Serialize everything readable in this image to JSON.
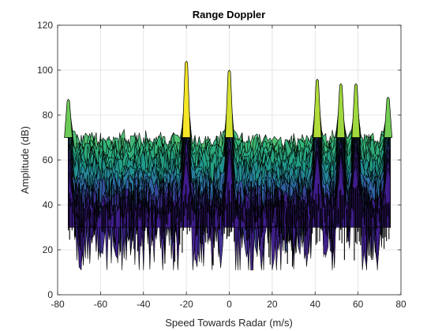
{
  "chart_data": {
    "type": "area",
    "title": "Range Doppler",
    "xlabel": "Speed Towards Radar (m/s)",
    "ylabel": "Amplitude (dB)",
    "xlim": [
      -80,
      80
    ],
    "ylim": [
      0,
      120
    ],
    "xticks": [
      -80,
      -60,
      -40,
      -20,
      0,
      20,
      40,
      60,
      80
    ],
    "yticks": [
      0,
      20,
      40,
      60,
      80,
      100,
      120
    ],
    "grid": true,
    "legend": "none",
    "colormap": [
      "#3e1e8a",
      "#2f6fa7",
      "#1f9b8a",
      "#35b779",
      "#8fd744",
      "#fde725"
    ],
    "edge_color": "#000000",
    "data_span": [
      -75,
      75
    ],
    "noise_floor_db": 50,
    "peaks": [
      {
        "x": -75,
        "y": 87
      },
      {
        "x": -20,
        "y": 104
      },
      {
        "x": 0,
        "y": 100
      },
      {
        "x": 41,
        "y": 96
      },
      {
        "x": 52,
        "y": 94
      },
      {
        "x": 59,
        "y": 94
      },
      {
        "x": 74,
        "y": 88
      }
    ]
  }
}
